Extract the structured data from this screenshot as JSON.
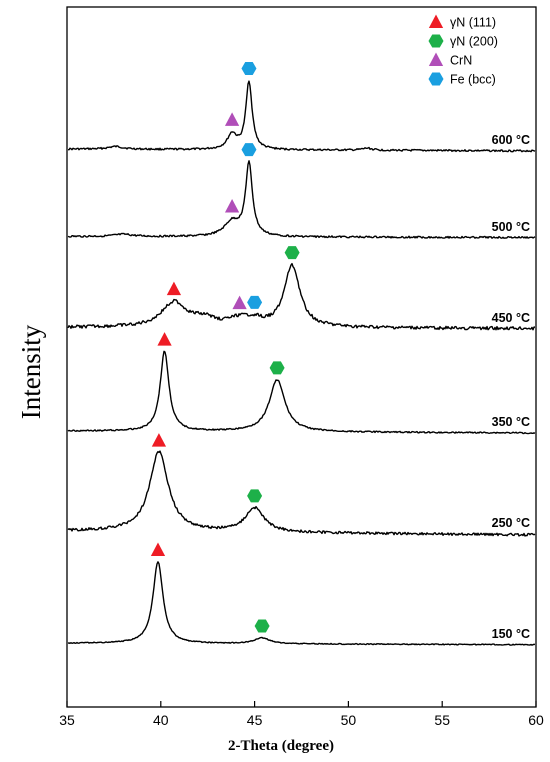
{
  "chart_data": {
    "type": "line",
    "xlabel": "2-Theta (degree)",
    "ylabel": "Intensity",
    "xlim": [
      35,
      60
    ],
    "xticks": [
      35,
      40,
      45,
      50,
      55,
      60
    ],
    "grid": false,
    "legend_position": "top-right",
    "legend": [
      {
        "key": "gN111",
        "label": "γN (111)",
        "marker": "triangle",
        "color": "#ee1c25"
      },
      {
        "key": "gN200",
        "label": "γN (200)",
        "marker": "hexagon",
        "color": "#1db049"
      },
      {
        "key": "CrN",
        "label": "CrN",
        "marker": "triangle",
        "color": "#b04eb8"
      },
      {
        "key": "Fe",
        "label": "Fe (bcc)",
        "marker": "hexagon",
        "color": "#1a9fe0"
      }
    ],
    "series": [
      {
        "name": "600 °C",
        "peaks": [
          {
            "x": 37.6,
            "h": 0.04,
            "w": 0.5,
            "p": "none"
          },
          {
            "x": 43.8,
            "h": 0.22,
            "w": 0.3,
            "p": "CrN"
          },
          {
            "x": 44.7,
            "h": 1.0,
            "w": 0.2,
            "p": "Fe"
          },
          {
            "x": 51.0,
            "h": 0.03,
            "w": 0.3,
            "p": "none"
          }
        ]
      },
      {
        "name": "500 °C",
        "peaks": [
          {
            "x": 38.0,
            "h": 0.03,
            "w": 0.6,
            "p": "none"
          },
          {
            "x": 43.8,
            "h": 0.2,
            "w": 0.5,
            "p": "CrN"
          },
          {
            "x": 44.7,
            "h": 1.0,
            "w": 0.22,
            "p": "Fe"
          }
        ]
      },
      {
        "name": "450 °C",
        "peaks": [
          {
            "x": 40.7,
            "h": 0.4,
            "w": 0.8,
            "p": "gN111"
          },
          {
            "x": 42.3,
            "h": 0.12,
            "w": 0.7,
            "p": "none"
          },
          {
            "x": 44.2,
            "h": 0.12,
            "w": 0.8,
            "p": "CrN"
          },
          {
            "x": 45.0,
            "h": 0.08,
            "w": 0.5,
            "p": "Fe"
          },
          {
            "x": 47.0,
            "h": 1.0,
            "w": 0.5,
            "p": "gN200"
          }
        ]
      },
      {
        "name": "350 °C",
        "peaks": [
          {
            "x": 40.2,
            "h": 1.0,
            "w": 0.28,
            "p": "gN111"
          },
          {
            "x": 46.2,
            "h": 0.65,
            "w": 0.5,
            "p": "gN200"
          }
        ]
      },
      {
        "name": "250 °C",
        "peaks": [
          {
            "x": 39.9,
            "h": 1.0,
            "w": 0.6,
            "p": "gN111"
          },
          {
            "x": 45.0,
            "h": 0.3,
            "w": 0.6,
            "p": "gN200"
          }
        ]
      },
      {
        "name": "150 °C",
        "peaks": [
          {
            "x": 39.85,
            "h": 1.0,
            "w": 0.32,
            "p": "gN111"
          },
          {
            "x": 45.4,
            "h": 0.07,
            "w": 0.5,
            "p": "gN200"
          }
        ]
      }
    ]
  }
}
